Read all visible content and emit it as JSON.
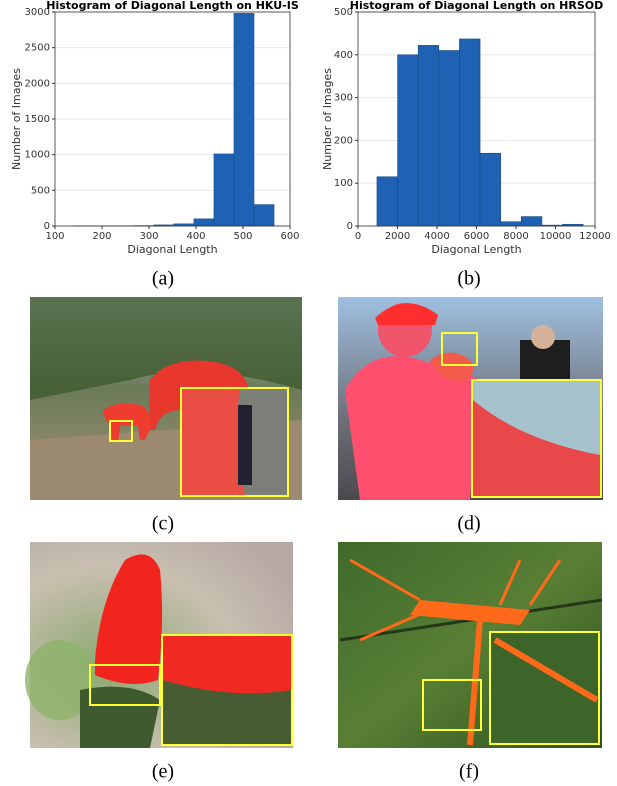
{
  "chart_data": [
    {
      "type": "histogram",
      "title": "Histogram of Diagonal Length on HKU-IS",
      "x_label": "Diagonal Length",
      "y_label": "Number of Images",
      "bins": [
        140,
        182.6,
        225.2,
        267.8,
        310.4,
        353,
        395.6,
        438.2,
        480.8,
        523.4,
        566
      ],
      "values": [
        2,
        1,
        2,
        5,
        15,
        30,
        100,
        1010,
        2980,
        300
      ],
      "color": "#1f62b3",
      "xlim": [
        100,
        600
      ],
      "xticks": [
        100,
        200,
        300,
        400,
        500,
        600
      ],
      "ylim": [
        0,
        3000
      ],
      "yticks": [
        0,
        500,
        1000,
        1500,
        2000,
        2500,
        3000
      ],
      "grid": true
    },
    {
      "type": "histogram",
      "title": "Histogram of Diagonal Length on HRSOD",
      "x_label": "Diagonal Length",
      "y_label": "Number of Images",
      "bins": [
        960,
        2004,
        3048,
        4092,
        5136,
        6180,
        7224,
        8268,
        9312,
        10356,
        11400
      ],
      "values": [
        115,
        400,
        422,
        410,
        437,
        170,
        10,
        22,
        2,
        4
      ],
      "color": "#1f62b3",
      "xlim": [
        0,
        12000
      ],
      "xticks": [
        0,
        2000,
        4000,
        6000,
        8000,
        10000,
        12000
      ],
      "ylim": [
        0,
        500
      ],
      "yticks": [
        0,
        100,
        200,
        300,
        400,
        500
      ],
      "grid": true
    }
  ],
  "captions": [
    "(a)",
    "(b)",
    "(c)",
    "(d)",
    "(e)",
    "(f)"
  ]
}
